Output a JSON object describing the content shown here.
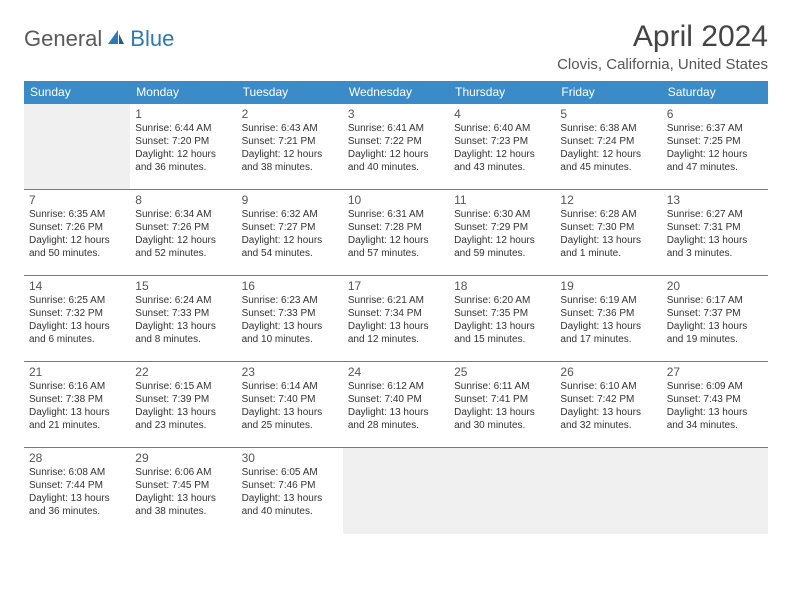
{
  "logo": {
    "part1": "General",
    "part2": "Blue"
  },
  "title": "April 2024",
  "location": "Clovis, California, United States",
  "colors": {
    "header_bg": "#3b8bc9",
    "header_text": "#ffffff",
    "border": "#3b8bc9",
    "empty_bg": "#f0f0f0",
    "text": "#333333",
    "logo_gray": "#5a5a5a",
    "logo_blue": "#2a7ab8"
  },
  "typography": {
    "title_fontsize": 30,
    "location_fontsize": 15,
    "header_fontsize": 12,
    "daynum_fontsize": 12,
    "cell_fontsize": 10
  },
  "day_headers": [
    "Sunday",
    "Monday",
    "Tuesday",
    "Wednesday",
    "Thursday",
    "Friday",
    "Saturday"
  ],
  "weeks": [
    [
      null,
      {
        "num": "1",
        "sunrise": "Sunrise: 6:44 AM",
        "sunset": "Sunset: 7:20 PM",
        "d1": "Daylight: 12 hours",
        "d2": "and 36 minutes."
      },
      {
        "num": "2",
        "sunrise": "Sunrise: 6:43 AM",
        "sunset": "Sunset: 7:21 PM",
        "d1": "Daylight: 12 hours",
        "d2": "and 38 minutes."
      },
      {
        "num": "3",
        "sunrise": "Sunrise: 6:41 AM",
        "sunset": "Sunset: 7:22 PM",
        "d1": "Daylight: 12 hours",
        "d2": "and 40 minutes."
      },
      {
        "num": "4",
        "sunrise": "Sunrise: 6:40 AM",
        "sunset": "Sunset: 7:23 PM",
        "d1": "Daylight: 12 hours",
        "d2": "and 43 minutes."
      },
      {
        "num": "5",
        "sunrise": "Sunrise: 6:38 AM",
        "sunset": "Sunset: 7:24 PM",
        "d1": "Daylight: 12 hours",
        "d2": "and 45 minutes."
      },
      {
        "num": "6",
        "sunrise": "Sunrise: 6:37 AM",
        "sunset": "Sunset: 7:25 PM",
        "d1": "Daylight: 12 hours",
        "d2": "and 47 minutes."
      }
    ],
    [
      {
        "num": "7",
        "sunrise": "Sunrise: 6:35 AM",
        "sunset": "Sunset: 7:26 PM",
        "d1": "Daylight: 12 hours",
        "d2": "and 50 minutes."
      },
      {
        "num": "8",
        "sunrise": "Sunrise: 6:34 AM",
        "sunset": "Sunset: 7:26 PM",
        "d1": "Daylight: 12 hours",
        "d2": "and 52 minutes."
      },
      {
        "num": "9",
        "sunrise": "Sunrise: 6:32 AM",
        "sunset": "Sunset: 7:27 PM",
        "d1": "Daylight: 12 hours",
        "d2": "and 54 minutes."
      },
      {
        "num": "10",
        "sunrise": "Sunrise: 6:31 AM",
        "sunset": "Sunset: 7:28 PM",
        "d1": "Daylight: 12 hours",
        "d2": "and 57 minutes."
      },
      {
        "num": "11",
        "sunrise": "Sunrise: 6:30 AM",
        "sunset": "Sunset: 7:29 PM",
        "d1": "Daylight: 12 hours",
        "d2": "and 59 minutes."
      },
      {
        "num": "12",
        "sunrise": "Sunrise: 6:28 AM",
        "sunset": "Sunset: 7:30 PM",
        "d1": "Daylight: 13 hours",
        "d2": "and 1 minute."
      },
      {
        "num": "13",
        "sunrise": "Sunrise: 6:27 AM",
        "sunset": "Sunset: 7:31 PM",
        "d1": "Daylight: 13 hours",
        "d2": "and 3 minutes."
      }
    ],
    [
      {
        "num": "14",
        "sunrise": "Sunrise: 6:25 AM",
        "sunset": "Sunset: 7:32 PM",
        "d1": "Daylight: 13 hours",
        "d2": "and 6 minutes."
      },
      {
        "num": "15",
        "sunrise": "Sunrise: 6:24 AM",
        "sunset": "Sunset: 7:33 PM",
        "d1": "Daylight: 13 hours",
        "d2": "and 8 minutes."
      },
      {
        "num": "16",
        "sunrise": "Sunrise: 6:23 AM",
        "sunset": "Sunset: 7:33 PM",
        "d1": "Daylight: 13 hours",
        "d2": "and 10 minutes."
      },
      {
        "num": "17",
        "sunrise": "Sunrise: 6:21 AM",
        "sunset": "Sunset: 7:34 PM",
        "d1": "Daylight: 13 hours",
        "d2": "and 12 minutes."
      },
      {
        "num": "18",
        "sunrise": "Sunrise: 6:20 AM",
        "sunset": "Sunset: 7:35 PM",
        "d1": "Daylight: 13 hours",
        "d2": "and 15 minutes."
      },
      {
        "num": "19",
        "sunrise": "Sunrise: 6:19 AM",
        "sunset": "Sunset: 7:36 PM",
        "d1": "Daylight: 13 hours",
        "d2": "and 17 minutes."
      },
      {
        "num": "20",
        "sunrise": "Sunrise: 6:17 AM",
        "sunset": "Sunset: 7:37 PM",
        "d1": "Daylight: 13 hours",
        "d2": "and 19 minutes."
      }
    ],
    [
      {
        "num": "21",
        "sunrise": "Sunrise: 6:16 AM",
        "sunset": "Sunset: 7:38 PM",
        "d1": "Daylight: 13 hours",
        "d2": "and 21 minutes."
      },
      {
        "num": "22",
        "sunrise": "Sunrise: 6:15 AM",
        "sunset": "Sunset: 7:39 PM",
        "d1": "Daylight: 13 hours",
        "d2": "and 23 minutes."
      },
      {
        "num": "23",
        "sunrise": "Sunrise: 6:14 AM",
        "sunset": "Sunset: 7:40 PM",
        "d1": "Daylight: 13 hours",
        "d2": "and 25 minutes."
      },
      {
        "num": "24",
        "sunrise": "Sunrise: 6:12 AM",
        "sunset": "Sunset: 7:40 PM",
        "d1": "Daylight: 13 hours",
        "d2": "and 28 minutes."
      },
      {
        "num": "25",
        "sunrise": "Sunrise: 6:11 AM",
        "sunset": "Sunset: 7:41 PM",
        "d1": "Daylight: 13 hours",
        "d2": "and 30 minutes."
      },
      {
        "num": "26",
        "sunrise": "Sunrise: 6:10 AM",
        "sunset": "Sunset: 7:42 PM",
        "d1": "Daylight: 13 hours",
        "d2": "and 32 minutes."
      },
      {
        "num": "27",
        "sunrise": "Sunrise: 6:09 AM",
        "sunset": "Sunset: 7:43 PM",
        "d1": "Daylight: 13 hours",
        "d2": "and 34 minutes."
      }
    ],
    [
      {
        "num": "28",
        "sunrise": "Sunrise: 6:08 AM",
        "sunset": "Sunset: 7:44 PM",
        "d1": "Daylight: 13 hours",
        "d2": "and 36 minutes."
      },
      {
        "num": "29",
        "sunrise": "Sunrise: 6:06 AM",
        "sunset": "Sunset: 7:45 PM",
        "d1": "Daylight: 13 hours",
        "d2": "and 38 minutes."
      },
      {
        "num": "30",
        "sunrise": "Sunrise: 6:05 AM",
        "sunset": "Sunset: 7:46 PM",
        "d1": "Daylight: 13 hours",
        "d2": "and 40 minutes."
      },
      null,
      null,
      null,
      null
    ]
  ]
}
